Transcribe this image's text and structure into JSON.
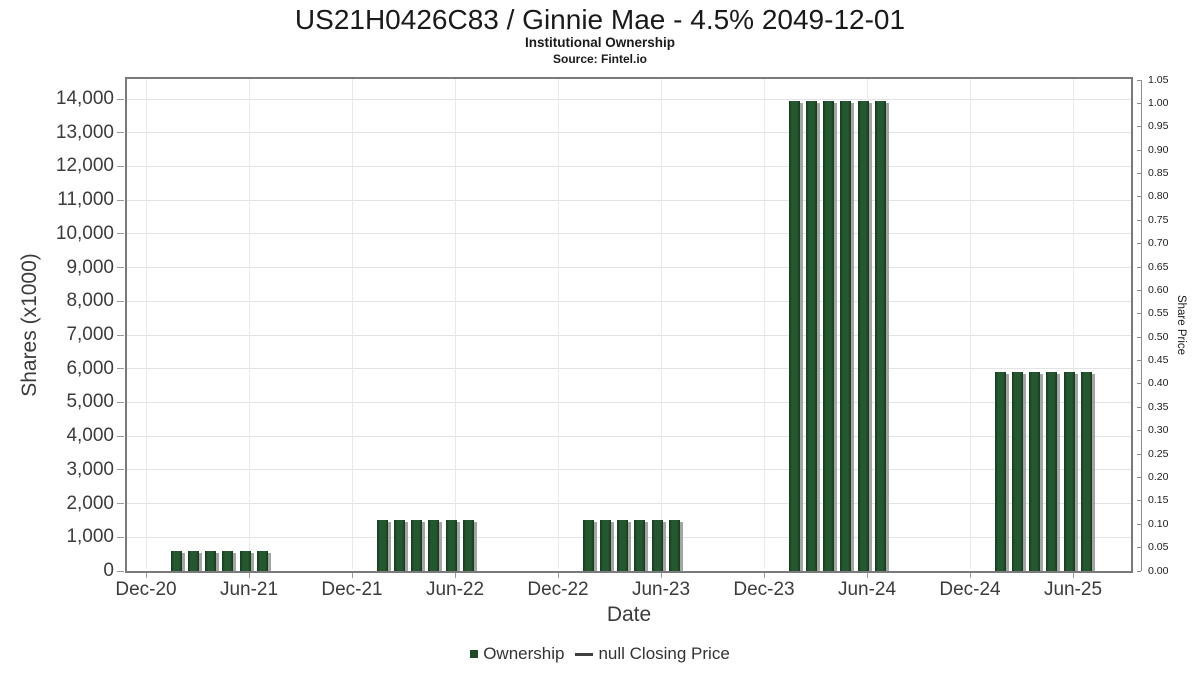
{
  "chart_data": {
    "type": "bar",
    "title": "US21H0426C83 / Ginnie Mae - 4.5% 2049-12-01",
    "subtitle": "Institutional Ownership",
    "source": "Source: Fintel.io",
    "xlabel": "Date",
    "ylabel": "Shares (x1000)",
    "y2label": "Share Price",
    "grid": true,
    "legend_position": "bottom",
    "x_ticks": [
      "Dec-20",
      "Jun-21",
      "Dec-21",
      "Jun-22",
      "Dec-22",
      "Jun-23",
      "Dec-23",
      "Jun-24",
      "Dec-24",
      "Jun-25"
    ],
    "y_ticks": [
      "0",
      "1,000",
      "2,000",
      "3,000",
      "4,000",
      "5,000",
      "6,000",
      "7,000",
      "8,000",
      "9,000",
      "10,000",
      "11,000",
      "12,000",
      "13,000",
      "14,000"
    ],
    "y2_ticks": [
      "0.00",
      "0.05",
      "0.10",
      "0.15",
      "0.20",
      "0.25",
      "0.30",
      "0.35",
      "0.40",
      "0.45",
      "0.50",
      "0.55",
      "0.60",
      "0.65",
      "0.70",
      "0.75",
      "0.80",
      "0.85",
      "0.90",
      "0.95",
      "1.00",
      "1.05"
    ],
    "y_axis": {
      "min": 0,
      "max": 14000,
      "step": 1000
    },
    "y2_axis": {
      "min": 0.0,
      "max": 1.05,
      "step": 0.05
    },
    "bar_color": "#1e4b27",
    "shadow_color": "#9e9e9e",
    "series": [
      {
        "name": "Ownership",
        "type": "bar",
        "color": "#1e4b27",
        "points": [
          {
            "month": "Feb-21",
            "month_index": 2,
            "value": 590
          },
          {
            "month": "Mar-21",
            "month_index": 3,
            "value": 590
          },
          {
            "month": "Apr-21",
            "month_index": 4,
            "value": 590
          },
          {
            "month": "May-21",
            "month_index": 5,
            "value": 590
          },
          {
            "month": "Jun-21",
            "month_index": 6,
            "value": 590
          },
          {
            "month": "Jul-21",
            "month_index": 7,
            "value": 590
          },
          {
            "month": "Feb-22",
            "month_index": 14,
            "value": 1500
          },
          {
            "month": "Mar-22",
            "month_index": 15,
            "value": 1500
          },
          {
            "month": "Apr-22",
            "month_index": 16,
            "value": 1500
          },
          {
            "month": "May-22",
            "month_index": 17,
            "value": 1500
          },
          {
            "month": "Jun-22",
            "month_index": 18,
            "value": 1500
          },
          {
            "month": "Jul-22",
            "month_index": 19,
            "value": 1500
          },
          {
            "month": "Feb-23",
            "month_index": 26,
            "value": 1500
          },
          {
            "month": "Mar-23",
            "month_index": 27,
            "value": 1500
          },
          {
            "month": "Apr-23",
            "month_index": 28,
            "value": 1500
          },
          {
            "month": "May-23",
            "month_index": 29,
            "value": 1500
          },
          {
            "month": "Jun-23",
            "month_index": 30,
            "value": 1500
          },
          {
            "month": "Jul-23",
            "month_index": 31,
            "value": 1500
          },
          {
            "month": "Feb-24",
            "month_index": 38,
            "value": 13950
          },
          {
            "month": "Mar-24",
            "month_index": 39,
            "value": 13950
          },
          {
            "month": "Apr-24",
            "month_index": 40,
            "value": 13950
          },
          {
            "month": "May-24",
            "month_index": 41,
            "value": 13950
          },
          {
            "month": "Jun-24",
            "month_index": 42,
            "value": 13950
          },
          {
            "month": "Jul-24",
            "month_index": 43,
            "value": 13950
          },
          {
            "month": "Feb-25",
            "month_index": 50,
            "value": 5890
          },
          {
            "month": "Mar-25",
            "month_index": 51,
            "value": 5890
          },
          {
            "month": "Apr-25",
            "month_index": 52,
            "value": 5890
          },
          {
            "month": "May-25",
            "month_index": 53,
            "value": 5890
          },
          {
            "month": "Jun-25",
            "month_index": 54,
            "value": 5890
          },
          {
            "month": "Jul-25",
            "month_index": 55,
            "value": 5890
          }
        ]
      },
      {
        "name": "null Closing Price",
        "type": "line",
        "color": "#3f3f3f",
        "points": []
      }
    ]
  }
}
